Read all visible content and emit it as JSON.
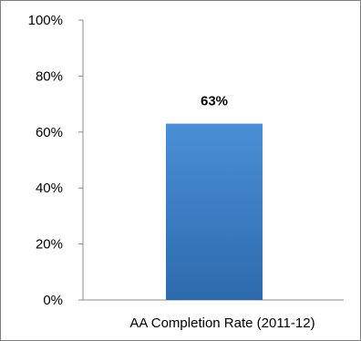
{
  "chart_data": {
    "type": "bar",
    "categories": [
      "AA Completion Rate (2011-12)"
    ],
    "values": [
      63
    ],
    "data_labels": [
      "63%"
    ],
    "ylim": [
      0,
      100
    ],
    "y_ticks": [
      0,
      20,
      40,
      60,
      80,
      100
    ],
    "y_tick_labels": [
      "0%",
      "20%",
      "40%",
      "60%",
      "80%",
      "100%"
    ],
    "grid": false,
    "legend": "none",
    "title": "",
    "xlabel": "",
    "ylabel": "",
    "colors": {
      "bar_top": "#4a8fd6",
      "bar_bottom": "#2e6aad",
      "axis": "#8c8c8c"
    }
  }
}
